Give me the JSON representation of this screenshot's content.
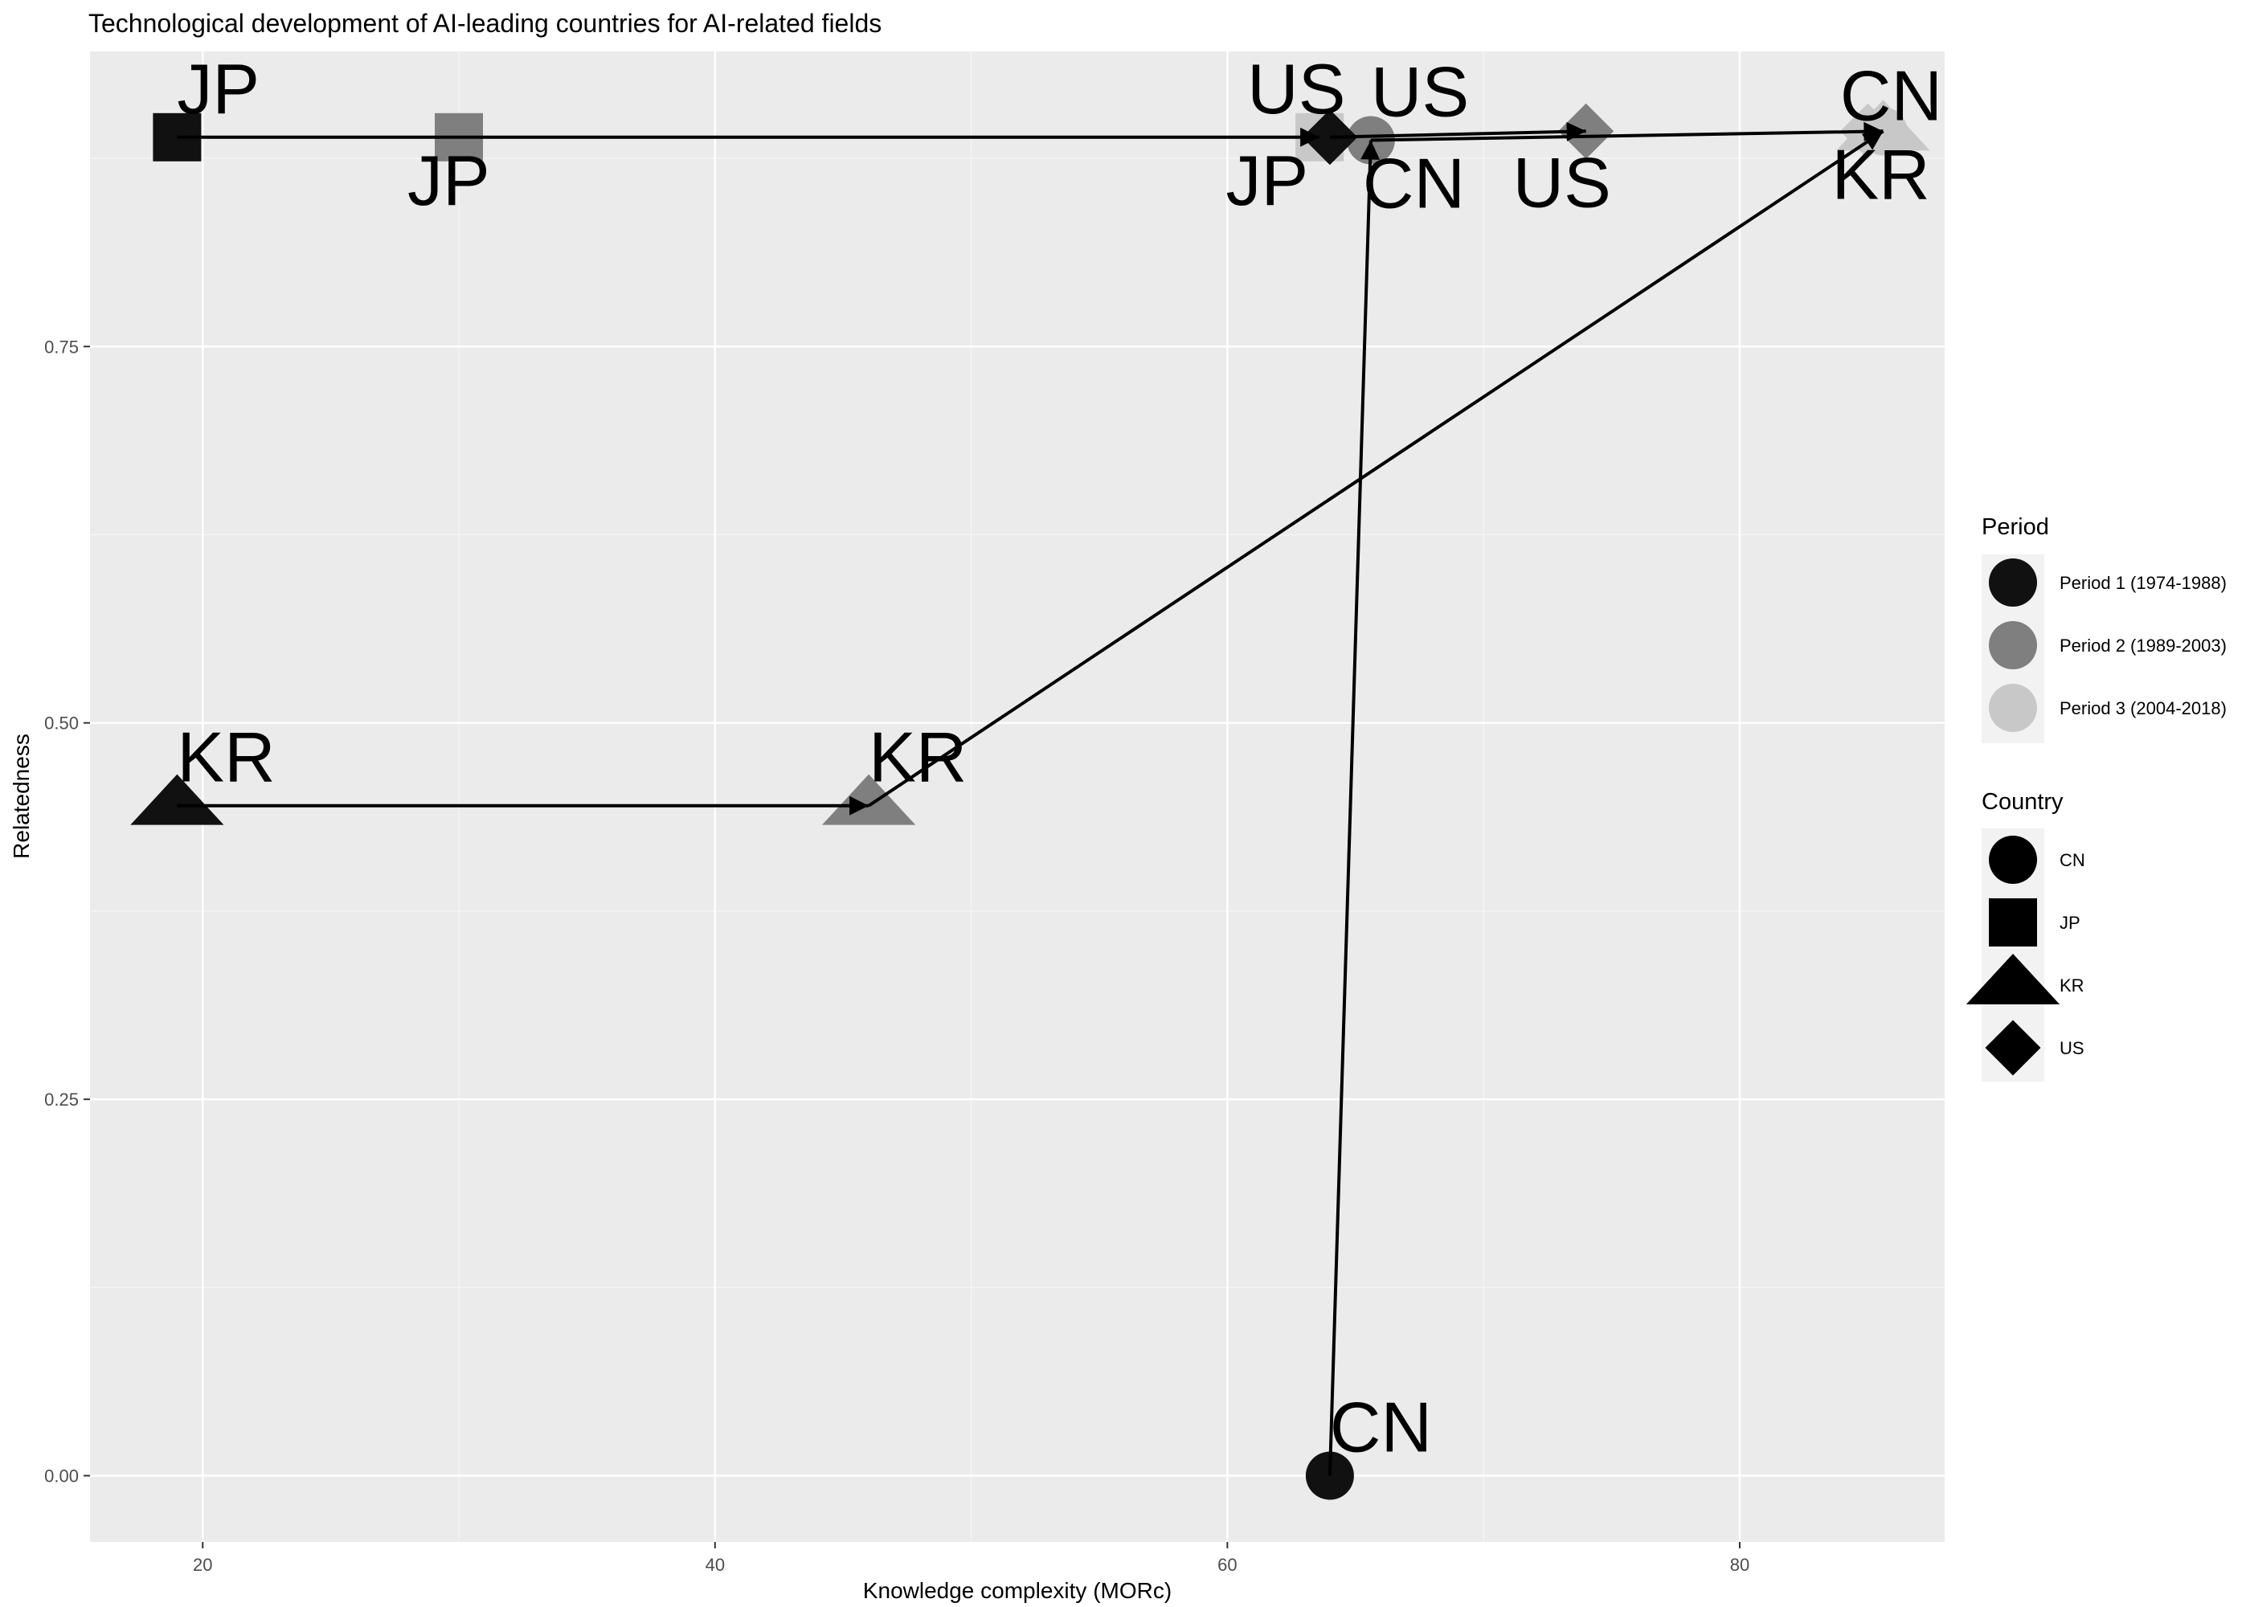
{
  "chart_data": {
    "type": "scatter",
    "title": "Technological development of AI-leading countries for AI-related fields",
    "xlabel": "Knowledge complexity (MORc)",
    "ylabel": "Relatedness",
    "xlim": [
      15.6,
      88.0
    ],
    "ylim": [
      -0.044,
      0.946
    ],
    "x_ticks": [
      20,
      40,
      60,
      80
    ],
    "x_tick_labels": [
      "20",
      "40",
      "60",
      "80"
    ],
    "y_ticks": [
      0.0,
      0.25,
      0.5,
      0.75
    ],
    "y_tick_labels": [
      "0.00",
      "0.25",
      "0.50",
      "0.75"
    ],
    "grid": true,
    "legend_placement": "right",
    "period_legend": {
      "title": "Period",
      "items": [
        {
          "label": "Period 1 (1974-1988)",
          "color": "#111111"
        },
        {
          "label": "Period 2 (1989-2003)",
          "color": "#7f7f7f"
        },
        {
          "label": "Period 3 (2004-2018)",
          "color": "#c8c8c8"
        }
      ]
    },
    "country_legend": {
      "title": "Country",
      "items": [
        {
          "label": "CN",
          "shape": "circle"
        },
        {
          "label": "JP",
          "shape": "square"
        },
        {
          "label": "KR",
          "shape": "triangle"
        },
        {
          "label": "US",
          "shape": "diamond"
        }
      ]
    },
    "series": [
      {
        "country": "CN",
        "shape": "circle",
        "points": [
          {
            "period": 1,
            "x": 64.0,
            "y": 0.0
          },
          {
            "period": 2,
            "x": 65.6,
            "y": 0.887
          },
          {
            "period": 3,
            "x": 85.6,
            "y": 0.893
          }
        ]
      },
      {
        "country": "JP",
        "shape": "square",
        "points": [
          {
            "period": 1,
            "x": 19.0,
            "y": 0.889
          },
          {
            "period": 2,
            "x": 30.0,
            "y": 0.889
          },
          {
            "period": 3,
            "x": 63.6,
            "y": 0.889
          }
        ]
      },
      {
        "country": "KR",
        "shape": "triangle",
        "points": [
          {
            "period": 1,
            "x": 19.0,
            "y": 0.445
          },
          {
            "period": 2,
            "x": 46.0,
            "y": 0.445
          },
          {
            "period": 3,
            "x": 85.6,
            "y": 0.893
          }
        ]
      },
      {
        "country": "US",
        "shape": "diamond",
        "points": [
          {
            "period": 1,
            "x": 64.0,
            "y": 0.889
          },
          {
            "period": 2,
            "x": 74.0,
            "y": 0.893
          },
          {
            "period": 3,
            "x": 85.0,
            "y": 0.893
          }
        ]
      }
    ],
    "point_labels": [
      {
        "text": "JP",
        "x": 19.0,
        "y": 0.889,
        "anchor": "above-right"
      },
      {
        "text": "JP",
        "x": 30.0,
        "y": 0.889,
        "anchor": "below-left"
      },
      {
        "text": "JP",
        "x": 63.6,
        "y": 0.889,
        "anchor": "below-left"
      },
      {
        "text": "US",
        "x": 63.6,
        "y": 0.889,
        "anchor": "above-left"
      },
      {
        "text": "US",
        "x": 65.6,
        "y": 0.887,
        "anchor": "above-right"
      },
      {
        "text": "CN",
        "x": 65.6,
        "y": 0.887,
        "anchor": "below-right"
      },
      {
        "text": "US",
        "x": 74.0,
        "y": 0.893,
        "anchor": "below-left"
      },
      {
        "text": "CN",
        "x": 85.6,
        "y": 0.893,
        "anchor": "above"
      },
      {
        "text": "KR",
        "x": 85.6,
        "y": 0.893,
        "anchor": "below-left"
      },
      {
        "text": "KR",
        "x": 19.0,
        "y": 0.445,
        "anchor": "above-right"
      },
      {
        "text": "KR",
        "x": 46.0,
        "y": 0.445,
        "anchor": "above-right"
      },
      {
        "text": "CN",
        "x": 64.0,
        "y": 0.0,
        "anchor": "above-right"
      }
    ],
    "arrows": [
      {
        "from": [
          19.0,
          0.889
        ],
        "to": [
          63.6,
          0.889
        ]
      },
      {
        "from": [
          19.0,
          0.445
        ],
        "to": [
          46.0,
          0.445
        ]
      },
      {
        "from": [
          46.0,
          0.445
        ],
        "to": [
          85.6,
          0.893
        ]
      },
      {
        "from": [
          64.0,
          0.0
        ],
        "to": [
          65.6,
          0.887
        ]
      },
      {
        "from": [
          65.6,
          0.887
        ],
        "to": [
          85.6,
          0.893
        ]
      },
      {
        "from": [
          64.0,
          0.889
        ],
        "to": [
          74.0,
          0.893
        ]
      }
    ]
  }
}
